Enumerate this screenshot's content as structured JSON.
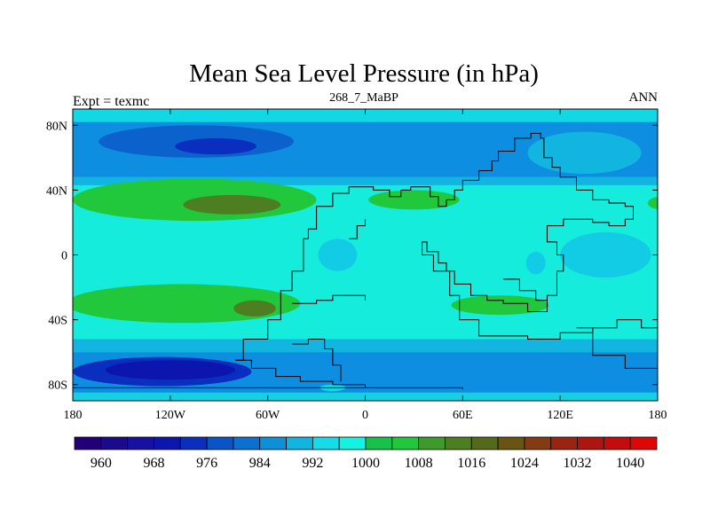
{
  "chart_data": {
    "type": "heatmap",
    "title": "Mean Sea Level Pressure (in hPa)",
    "left_string": "Expt = texmc",
    "center_string": "268_7_MaBP",
    "right_string": "ANN",
    "x_range": [
      -180,
      180
    ],
    "y_range": [
      -90,
      90
    ],
    "x_ticks": [
      {
        "value": -180,
        "label": "180"
      },
      {
        "value": -120,
        "label": "120W"
      },
      {
        "value": -60,
        "label": "60W"
      },
      {
        "value": 0,
        "label": "0"
      },
      {
        "value": 60,
        "label": "60E"
      },
      {
        "value": 120,
        "label": "120E"
      },
      {
        "value": 180,
        "label": "180"
      }
    ],
    "y_ticks": [
      {
        "value": 80,
        "label": "80N"
      },
      {
        "value": 40,
        "label": "40N"
      },
      {
        "value": 0,
        "label": "0"
      },
      {
        "value": -40,
        "label": "40S"
      },
      {
        "value": -80,
        "label": "80S"
      }
    ],
    "colorbar": {
      "colors": [
        "#22007a",
        "#1c0a8c",
        "#1810a0",
        "#0c16ae",
        "#0a2ebd",
        "#0a54c8",
        "#0c70d0",
        "#0e90d8",
        "#12b4e0",
        "#16dcea",
        "#14f2e2",
        "#16c24a",
        "#22c83c",
        "#3e9a2c",
        "#4e7e22",
        "#546a1a",
        "#6a5414",
        "#843a12",
        "#9a2412",
        "#ae1410",
        "#c40c0c",
        "#dc0808"
      ],
      "label_values": [
        960,
        968,
        976,
        984,
        992,
        1000,
        1008,
        1016,
        1024,
        1032,
        1040
      ],
      "labels": [
        "960",
        "968",
        "976",
        "984",
        "992",
        "1000",
        "1008",
        "1016",
        "1024",
        "1032",
        "1040"
      ],
      "interval": 4,
      "first_boundary": 956
    },
    "field": {
      "background": {
        "value": 1004,
        "color": "#16ecdc"
      },
      "bands": [
        {
          "name": "north-pole-cap",
          "lat": [
            82,
            90
          ],
          "value": 1002,
          "color": "#12d8e6"
        },
        {
          "name": "north-subpolar-low",
          "lat": [
            48,
            82
          ],
          "value": 990,
          "color": "#0e8ee0"
        },
        {
          "name": "north-midlat-trough",
          "lat": [
            43,
            48
          ],
          "value": 994,
          "color": "#12b4e0"
        },
        {
          "name": "southern-ocean-trough",
          "lat": [
            -60,
            -52
          ],
          "value": 994,
          "color": "#12b4e0"
        },
        {
          "name": "south-subpolar-low",
          "lat": [
            -85,
            -60
          ],
          "value": 990,
          "color": "#0e8ee0"
        },
        {
          "name": "south-pole-cap",
          "lat": [
            -90,
            -85
          ],
          "value": 1002,
          "color": "#14d0e0"
        }
      ],
      "cells": [
        {
          "name": "aleutian-low",
          "center": [
            -104,
            70
          ],
          "radius": [
            60,
            10
          ],
          "value": 985,
          "color": "#0c62cc"
        },
        {
          "name": "aleutian-low-core",
          "center": [
            -92,
            67
          ],
          "radius": [
            25,
            5
          ],
          "value": 974,
          "color": "#0a2ebd"
        },
        {
          "name": "north-atlantic-low",
          "center": [
            135,
            63
          ],
          "radius": [
            35,
            13
          ],
          "value": 994,
          "color": "#12b4e0"
        },
        {
          "name": "north-pacific-high",
          "center": [
            -105,
            34
          ],
          "radius": [
            75,
            13
          ],
          "value": 1009,
          "color": "#22c83c"
        },
        {
          "name": "north-pacific-high-core",
          "center": [
            -82,
            31
          ],
          "radius": [
            30,
            6
          ],
          "value": 1015,
          "color": "#4e7e22"
        },
        {
          "name": "tethys-high",
          "center": [
            30,
            34
          ],
          "radius": [
            28,
            6
          ],
          "value": 1009,
          "color": "#22c83c"
        },
        {
          "name": "east-high-edge",
          "center": [
            182,
            32
          ],
          "radius": [
            8,
            4
          ],
          "value": 1009,
          "color": "#22c83c"
        },
        {
          "name": "equatorial-low-west",
          "center": [
            -17,
            0
          ],
          "radius": [
            12,
            10
          ],
          "value": 998,
          "color": "#12cce6"
        },
        {
          "name": "equatorial-low-east",
          "center": [
            105,
            -5
          ],
          "radius": [
            6,
            7
          ],
          "value": 998,
          "color": "#12cce6"
        },
        {
          "name": "panthalassa-low",
          "center": [
            148,
            0
          ],
          "radius": [
            28,
            14
          ],
          "value": 998,
          "color": "#12cce6"
        },
        {
          "name": "south-pacific-high",
          "center": [
            -112,
            -30
          ],
          "radius": [
            72,
            12
          ],
          "value": 1009,
          "color": "#22c83c"
        },
        {
          "name": "south-pacific-high-core",
          "center": [
            -68,
            -33
          ],
          "radius": [
            13,
            5
          ],
          "value": 1015,
          "color": "#4e7e22"
        },
        {
          "name": "south-tethys-high",
          "center": [
            83,
            -31
          ],
          "radius": [
            30,
            6
          ],
          "value": 1009,
          "color": "#22c83c"
        },
        {
          "name": "southern-low",
          "center": [
            -125,
            -72
          ],
          "radius": [
            55,
            9
          ],
          "value": 980,
          "color": "#0a2ebd"
        },
        {
          "name": "southern-low-core",
          "center": [
            -120,
            -71
          ],
          "radius": [
            40,
            6
          ],
          "value": 974,
          "color": "#0c16ae"
        },
        {
          "name": "polar-small-cell",
          "center": [
            -20,
            -82
          ],
          "radius": [
            8,
            2
          ],
          "value": 1002,
          "color": "#12d8e6"
        }
      ]
    },
    "coastlines": [
      [
        [
          -80,
          -65
        ],
        [
          -75,
          -52
        ],
        [
          -60,
          -40
        ],
        [
          -52,
          -22
        ],
        [
          -45,
          -10
        ],
        [
          -38,
          2
        ],
        [
          -38,
          10
        ],
        [
          -35,
          16
        ],
        [
          -30,
          30
        ],
        [
          -20,
          38
        ],
        [
          -10,
          42
        ],
        [
          5,
          40
        ],
        [
          15,
          36
        ],
        [
          22,
          40
        ],
        [
          28,
          42
        ],
        [
          40,
          36
        ],
        [
          45,
          30
        ],
        [
          50,
          34
        ],
        [
          55,
          40
        ],
        [
          60,
          46
        ],
        [
          70,
          52
        ],
        [
          78,
          58
        ],
        [
          82,
          64
        ],
        [
          92,
          72
        ],
        [
          102,
          75
        ],
        [
          108,
          72
        ],
        [
          110,
          60
        ],
        [
          115,
          54
        ],
        [
          120,
          48
        ],
        [
          130,
          40
        ],
        [
          140,
          34
        ],
        [
          150,
          32
        ],
        [
          160,
          30
        ],
        [
          165,
          22
        ],
        [
          160,
          18
        ],
        [
          150,
          20
        ],
        [
          140,
          22
        ],
        [
          130,
          22
        ],
        [
          122,
          18
        ],
        [
          112,
          8
        ],
        [
          118,
          0
        ],
        [
          122,
          -10
        ],
        [
          118,
          -25
        ],
        [
          112,
          -35
        ],
        [
          100,
          -30
        ],
        [
          85,
          -28
        ],
        [
          75,
          -25
        ],
        [
          65,
          -18
        ],
        [
          55,
          -10
        ],
        [
          50,
          -5
        ],
        [
          45,
          2
        ],
        [
          38,
          8
        ],
        [
          35,
          0
        ],
        [
          42,
          -10
        ],
        [
          52,
          -25
        ],
        [
          58,
          -40
        ],
        [
          70,
          -50
        ],
        [
          85,
          -50
        ],
        [
          100,
          -52
        ],
        [
          120,
          -48
        ],
        [
          140,
          -45
        ],
        [
          155,
          -40
        ],
        [
          170,
          -45
        ],
        [
          180,
          -55
        ]
      ],
      [
        [
          -80,
          -65
        ],
        [
          -70,
          -70
        ],
        [
          -55,
          -75
        ],
        [
          -40,
          -78
        ],
        [
          -20,
          -80
        ],
        [
          0,
          -82
        ],
        [
          30,
          -82
        ],
        [
          60,
          -83
        ]
      ],
      [
        [
          -180,
          -82
        ],
        [
          -120,
          -82
        ],
        [
          -60,
          -82
        ],
        [
          0,
          -82
        ]
      ],
      [
        [
          -45,
          -55
        ],
        [
          -35,
          -52
        ],
        [
          -25,
          -58
        ],
        [
          -20,
          -68
        ],
        [
          -15,
          -78
        ]
      ],
      [
        [
          130,
          -45
        ],
        [
          140,
          -62
        ],
        [
          160,
          -70
        ],
        [
          180,
          -70
        ]
      ],
      [
        [
          -45,
          -30
        ],
        [
          -30,
          -28
        ],
        [
          -20,
          -25
        ],
        [
          0,
          -28
        ]
      ],
      [
        [
          -10,
          10
        ],
        [
          -5,
          18
        ],
        [
          0,
          22
        ]
      ],
      [
        [
          85,
          -15
        ],
        [
          95,
          -22
        ],
        [
          105,
          -28
        ],
        [
          112,
          -30
        ]
      ]
    ]
  }
}
